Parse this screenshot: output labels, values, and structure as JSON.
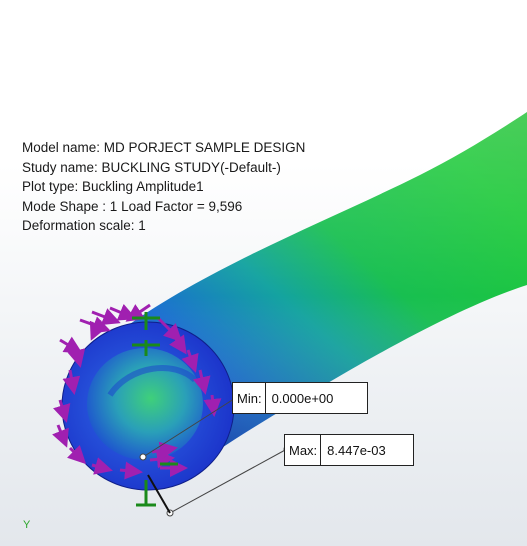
{
  "plot_info": {
    "model_name": "Model name: MD PORJECT SAMPLE DESIGN",
    "study_name": "Study name: BUCKLING STUDY(-Default-)",
    "plot_type": "Plot type: Buckling Amplitude1",
    "mode_shape": "Mode Shape : 1  Load Factor = 9,596",
    "deformation_scale": "Deformation scale: 1"
  },
  "min_probe": {
    "label": "Min:",
    "value": "0.000e+00"
  },
  "max_probe": {
    "label": "Max:",
    "value": "8.447e-03"
  },
  "axis_triad": {
    "y_label": "Y"
  },
  "colors": {
    "tube_outer_blue": "#1f3fd0",
    "tube_green": "#1fbf3f",
    "load_arrow": "#a020b0",
    "fixture": "#20a020",
    "axis": "#2aa52a"
  },
  "icons": [
    "load-arrow-icon",
    "fixture-icon",
    "probe-pin-icon",
    "axis-triad-icon"
  ]
}
